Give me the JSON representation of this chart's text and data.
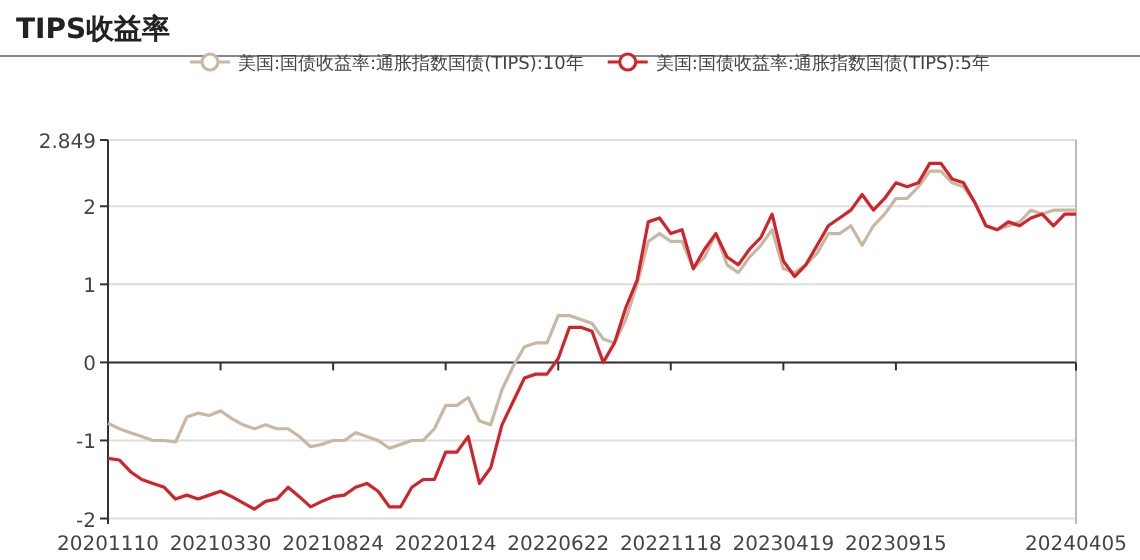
{
  "chart_data": {
    "type": "line",
    "title": "TIPS收益率",
    "categories": [
      "20201110",
      null,
      null,
      null,
      null,
      null,
      null,
      null,
      null,
      null,
      "20210330",
      null,
      null,
      null,
      null,
      null,
      null,
      null,
      null,
      null,
      "20210824",
      null,
      null,
      null,
      null,
      null,
      null,
      null,
      null,
      null,
      "20220124",
      null,
      null,
      null,
      null,
      null,
      null,
      null,
      null,
      null,
      "20220622",
      null,
      null,
      null,
      null,
      null,
      null,
      null,
      null,
      null,
      "20221118",
      null,
      null,
      null,
      null,
      null,
      null,
      null,
      null,
      null,
      "20230419",
      null,
      null,
      null,
      null,
      null,
      null,
      null,
      null,
      null,
      "20230915",
      null,
      null,
      null,
      null,
      null,
      null,
      null,
      null,
      null,
      null,
      null,
      null,
      null,
      null,
      null,
      "20240405"
    ],
    "series": [
      {
        "name": "美国:国债收益率:通胀指数国债(TIPS):10年",
        "color": "#c8b8a2",
        "values": [
          -0.78,
          -0.85,
          -0.9,
          -0.95,
          -1.0,
          -1.0,
          -1.02,
          -0.7,
          -0.65,
          -0.68,
          -0.62,
          -0.72,
          -0.8,
          -0.85,
          -0.8,
          -0.85,
          -0.85,
          -0.95,
          -1.08,
          -1.05,
          -1.0,
          -1.0,
          -0.9,
          -0.95,
          -1.0,
          -1.1,
          -1.05,
          -1.0,
          -1.0,
          -0.85,
          -0.55,
          -0.55,
          -0.45,
          -0.75,
          -0.8,
          -0.35,
          -0.05,
          0.2,
          0.25,
          0.25,
          0.6,
          0.6,
          0.55,
          0.5,
          0.3,
          0.25,
          0.55,
          1.0,
          1.55,
          1.65,
          1.55,
          1.55,
          1.2,
          1.35,
          1.65,
          1.25,
          1.15,
          1.35,
          1.5,
          1.7,
          1.2,
          1.15,
          1.25,
          1.4,
          1.65,
          1.65,
          1.75,
          1.5,
          1.75,
          1.9,
          2.1,
          2.1,
          2.25,
          2.45,
          2.45,
          2.3,
          2.25,
          2.05,
          1.75,
          1.7,
          1.75,
          1.8,
          1.95,
          1.9,
          1.95,
          1.95,
          1.95
        ]
      },
      {
        "name": "美国:国债收益率:通胀指数国债(TIPS):5年",
        "color": "#d2232a",
        "values": [
          -1.23,
          -1.25,
          -1.4,
          -1.5,
          -1.55,
          -1.6,
          -1.75,
          -1.7,
          -1.75,
          -1.7,
          -1.65,
          -1.72,
          -1.8,
          -1.88,
          -1.78,
          -1.75,
          -1.6,
          -1.72,
          -1.85,
          -1.78,
          -1.72,
          -1.7,
          -1.6,
          -1.55,
          -1.65,
          -1.85,
          -1.85,
          -1.6,
          -1.5,
          -1.5,
          -1.15,
          -1.15,
          -0.95,
          -1.55,
          -1.35,
          -0.8,
          -0.5,
          -0.2,
          -0.15,
          -0.15,
          0.05,
          0.45,
          0.45,
          0.4,
          0.0,
          0.25,
          0.7,
          1.05,
          1.8,
          1.85,
          1.65,
          1.7,
          1.2,
          1.45,
          1.65,
          1.35,
          1.25,
          1.45,
          1.6,
          1.9,
          1.3,
          1.1,
          1.25,
          1.5,
          1.75,
          1.85,
          1.95,
          2.15,
          1.95,
          2.1,
          2.3,
          2.25,
          2.3,
          2.55,
          2.55,
          2.35,
          2.3,
          2.05,
          1.75,
          1.7,
          1.8,
          1.75,
          1.85,
          1.9,
          1.75,
          1.9,
          1.9
        ]
      }
    ],
    "ylim": [
      -2.07,
      2.849
    ],
    "yticks": [
      -2,
      -1,
      0,
      1,
      2,
      2.849
    ],
    "grid": "y",
    "legend": "top"
  }
}
